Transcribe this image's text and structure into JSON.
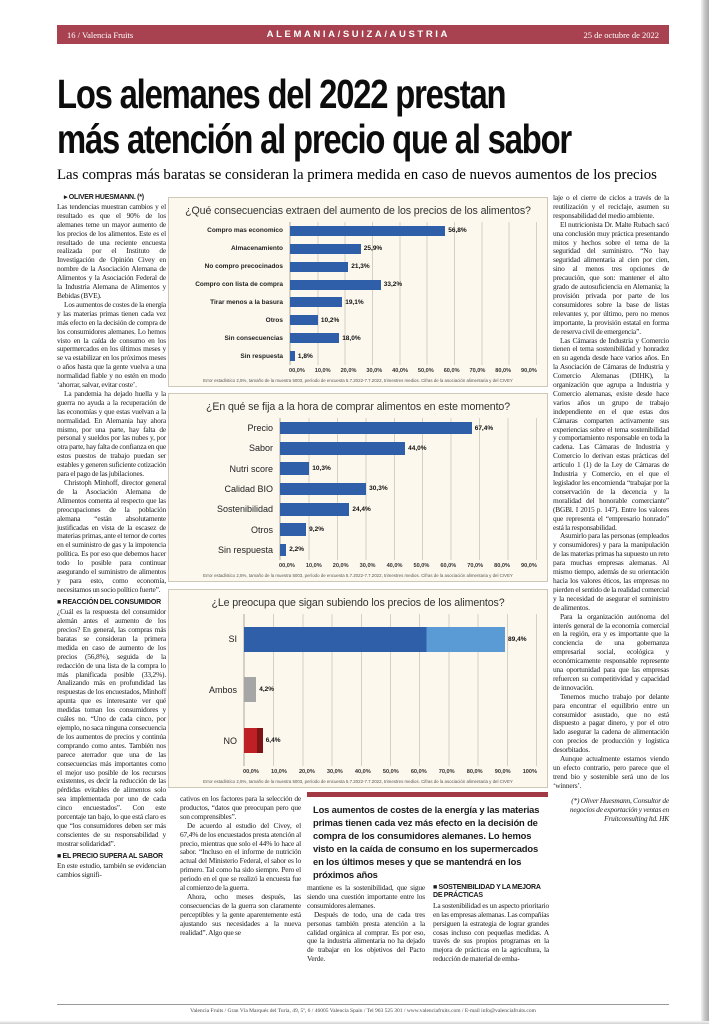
{
  "header": {
    "left": "16 / Valencia Fruits",
    "center": "ALEMANIA/SUIZA/AUSTRIA",
    "right": "25 de octubre de 2022",
    "bar_color": "#a84250"
  },
  "headline": {
    "line1": "Los alemanes del 2022 prestan",
    "line2": "más atención al precio que al sabor"
  },
  "deck": "Las compras más baratas se consideran la primera medida en caso de nuevos aumentos de los precios",
  "byline": "▸ OLIVER HUESMANN. (*)",
  "col1": {
    "p1": "Las tendencias muestran cambios y el resultado es que el 90% de los alemanes teme un mayor aumento de los precios de los alimentos. Este es el resultado de una reciente encuesta realizada por el Instituto de Investigación de Opinión Civey en nombre de la Asociación Alemana de Alimentos y la Asociación Federal de la Industria Alemana de Alimentos y Bebidas (BVE).",
    "p2": "Los aumentos de costes de la energía y las materias primas tienen cada vez más efecto en la decisión de compra de los consumidores alemanes. Lo hemos visto en la caída de consumo en los supermercados en los últimos meses y se va estabilizar en los próximos meses o años hasta que la gente vuelva a una normalidad fiable y no estén en modo ‘ahorrar, salvar, evitar coste’.",
    "p3": "La pandemia ha dejado huella y la guerra no ayuda a la recuperación de las economías y que estas vuelvan a la normalidad. En Alemania hay ahora mismo, por una parte, hay falta de personal y sueldos por las nubes y, por otra parte, hay falta de confianza en que estos puestos de trabajo puedan ser estables y generen suficiente cotización para el pago de las jubilaciones.",
    "p4": "Christoph Minhoff, director general de la Asociación Alemana de Alimentos comenta al respecto que las preocupaciones de la población alemana “están absolutamente justificadas en vista de la escasez de materias primas, ante el temor de cortes en el suministro de gas y la impotencia política. Es por eso que debemos hacer todo lo posible para continuar asegurando el suministro de alimentos y para esto, como economía, necesitamos un socio político fuerte”.",
    "h1": "■ REACCIÓN DEL CONSUMIDOR",
    "p5": "¿Cuál es la respuesta del consumidor alemán antes el aumento de los precios? En general, las compras más baratas se consideran la primera medida en caso de aumento de los precios (56,8%), seguida de la redacción de una lista de la compra lo más planificada posible (33,2%). Analizando más en profundidad las respuestas de los encuestados, Minhoff apunta que es interesante ver qué medidas toman los consumidores y cuáles no. “Uno de cada cinco, por ejemplo, no saca ninguna consecuencia de los aumentos de precios y continúa comprando como antes. También nos parece aterrador que una de las consecuencias más importantes como el mejor uso posible de los recursos existentes, es decir la reducción de las pérdidas evitables de alimentos solo sea implementada por uno de cada cinco encuestados”. Con este porcentaje tan bajo, lo que está claro es que “los consumidores deben ser más conscientes de su responsabilidad y mostrar solidaridad”.",
    "h2": "■ EL PRECIO SUPERA AL SABOR",
    "p6": "En este estudio, también se evidencian cambios signifi-"
  },
  "col2u": {
    "p1": "cativos en los factores para la selección de productos, “datos que preocupan pero que son comprensibles”.",
    "p2": "De acuerdo al estudio del Civey, el 67,4% de los encuestados presta atención al precio, mientras que solo el 44% lo hace al sabor. “Incluso en el informe de nutrición actual del Ministerio Federal, el sabor es lo primero. Tal como ha sido siempre. Pero el periodo en el que se realizó la encuesta fue al comienzo de la guerra.",
    "p3": "Ahora, ocho meses después, las consecuencias de la guerra son claramente perceptibles y la gente aparentemente está ajustando sus necesidades a la nueva realidad”. Algo que se"
  },
  "pull_quote": "Los aumentos de costes de la energía y las materias primas tienen cada vez más efecto en la decisión de compra de los consumidores alemanes. Lo hemos visto en la caída de consumo en los supermercados en los últimos meses y que se mantendrá en los próximos años",
  "col3u": {
    "p1": "mantiene es la sostenibilidad, que sigue siendo una cuestión importante entre los consumidores alemanes.",
    "p2": "Después de todo, una de cada tres personas también presta atención a la calidad orgánica al comprar. Es por eso, que la industria alimentaria no ha dejado de trabajar en los objetivos del Pacto Verde."
  },
  "col4u": {
    "h": "■ SOSTENIBILIDAD Y LA MEJORA DE PRÁCTICAS",
    "p1": "La sostenibilidad es un aspecto prioritario en las empresas alemanas. Las compañías persiguen la estrategia de lograr grandes cosas incluso con pequeñas medidas. A través de sus propios programas en la mejora de prácticas en la agricultura, la reducción de material de emba-"
  },
  "col5": {
    "p1": "laje o el cierre de ciclos a través de la reutilización y el reciclaje, asumen su responsabilidad del medio ambiente.",
    "p2": "El nutricionista Dr. Malte Rubach sacó una conclusión muy práctica presentando mitos y hechos sobre el tema de la seguridad del suministro. “No hay seguridad alimentaria al cien por cien, sino al menos tres opciones de precaución, que son: mantener el alto grado de autosuficiencia en Alemania; la provisión privada por parte de los consumidores sobre la base de listas relevantes y, por último, pero no menos importante, la provisión estatal en forma de reserva civil de emergencia”.",
    "p3": "Las Cámaras de Industria y Comercio tienen el tema sostenibilidad y honradez en su agenda desde hace varios años. En la Asociación de Cámaras de Industria y Comercio Alemanas (DIHK), la organización que agrupa a Industria y Comercio alemanas, existe desde hace varios años un grupo de trabajo independiente en el que estas dos Cámaras comparten activamente sus experiencias sobre el tema sostenibilidad y comportamiento responsable en toda la cadena. Las Cámaras de Industria y Comercio lo derivan estas prácticas del artículo 1 (1) de la Ley de Cámaras de Industria y Comercio, en el que el legislador les encomienda “trabajar por la conservación de la decencia y la moralidad del honorable comerciante” (BGBl. I 2015 p. 147). Entre los valores que representa el “empresario honrado” está la responsabilidad.",
    "p4": "Asumirlo para las personas (empleados y consumidores) y para la manipulación de las materias primas ha supuesto un reto para muchas empresas alemanas. Al mismo tiempo, además de su orientación hacia los valores éticos, las empresas no pierden el sentido de la realidad comercial y la necesidad de asegurar el suministro de alimentos.",
    "p5": "Para la organización autónoma del interés general de la economía comercial en la región, era y es importante que la conciencia de una gobernanza empresarial social, ecológica y económicamente responsable represente una oportunidad para que las empresas refuercen su competitividad y capacidad de innovación.",
    "p6": "Tenemos mucho trabajo por delante para encontrar el equilibrio entre un consumidor asustado, que no está dispuesto a pagar dinero, y por el otro lado asegurar la cadena de alimentación con precios de producción y logística desorbitados.",
    "p7": "Aunque actualmente estamos viendo un efecto contrario, pero parece que el trend bio y sostenible será uno de los ‘winners’.",
    "signature": "(*) Oliver Huesmann, Consultor de negocios de exportación y ventas en Fruitconsulting ltd. HK"
  },
  "chart_data": [
    {
      "type": "bar",
      "title": "¿Qué consecuencias extraen del aumento de los precios de los alimentos?",
      "categories": [
        "Compro mas economico",
        "Almacenamiento",
        "No compro precocinados",
        "Compro con lista de compra",
        "Tirar menos a la basura",
        "Otros",
        "Sin consecuencias",
        "Sin respuesta"
      ],
      "values": [
        56.8,
        25.9,
        21.3,
        33.2,
        19.1,
        10.2,
        18.0,
        1.8
      ],
      "value_labels": [
        "56,8%",
        "25,9%",
        "21,3%",
        "33,2%",
        "19,1%",
        "10,2%",
        "18,0%",
        "1,8%"
      ],
      "xlim": [
        0,
        90
      ],
      "x_ticks": [
        "00,0%",
        "10,0%",
        "20,0%",
        "30,0%",
        "40,0%",
        "50,0%",
        "60,0%",
        "70,0%",
        "80,0%",
        "90,0%"
      ],
      "bar_color": "#2f5fa8",
      "grid": true,
      "legend": "none",
      "footnote": "Error estadístico 2,5%, tamaño de la muestra 5003, período de encuesta 5.7.2022-7.7.2022, trimestres medios.  Cifras de la asociación alimentaria y del CIVEY"
    },
    {
      "type": "bar",
      "title": "¿En qué se fija a la hora de comprar alimentos en este momento?",
      "categories": [
        "Precio",
        "Sabor",
        "Nutri score",
        "Calidad BIO",
        "Sostenibilidad",
        "Otros",
        "Sin respuesta"
      ],
      "values": [
        67.4,
        44.0,
        10.3,
        30.3,
        24.4,
        9.2,
        2.2
      ],
      "value_labels": [
        "67,4%",
        "44,0%",
        "10,3%",
        "30,3%",
        "24,4%",
        "9,2%",
        "2,2%"
      ],
      "xlim": [
        0,
        90
      ],
      "x_ticks": [
        "00,0%",
        "10,0%",
        "20,0%",
        "30,0%",
        "40,0%",
        "50,0%",
        "60,0%",
        "70,0%",
        "80,0%",
        "90,0%"
      ],
      "bar_color": "#2f5fa8",
      "grid": true,
      "legend": "none",
      "footnote": "Error estadístico 2,5%, tamaño de la muestra 5003, período de encuesta 5.7.2022-7.7.2022, trimestres medios.  Cifras de la asociación alimentaria y del CIVEY"
    },
    {
      "type": "bar",
      "title": "¿Le preocupa que sigan subiendo los precios de los alimentos?",
      "categories": [
        "SI",
        "Ambos",
        "NO"
      ],
      "values": [
        89.4,
        4.2,
        6.4
      ],
      "value_labels": [
        "89,4%",
        "4,2%",
        "6,4%"
      ],
      "xlim": [
        0,
        100
      ],
      "x_ticks": [
        "00,0%",
        "10,0%",
        "20,0%",
        "30,0%",
        "40,0%",
        "50,0%",
        "60,0%",
        "70,0%",
        "80,0%",
        "90,0%",
        "100%"
      ],
      "bars": [
        {
          "color": "#2f5fa8",
          "color2": "#5b9bd5",
          "split": 70
        },
        {
          "color": "#a6a6a6"
        },
        {
          "color": "#bf2026",
          "color2": "#7c1416",
          "split": 68
        }
      ],
      "grid": true,
      "legend": "none",
      "footnote": "Error estadístico 2,5%, tamaño de la muestra 5003, período de encuesta 5.7.2022-7.7.2022, trimestres medios.  Cifras de la asociación alimentaria y del CIVEY"
    }
  ],
  "footer": "Valencia Fruits / Gran Vía Marqués del Turia, 49, 5º, 6 / 46005 Valencia Spain / Tel 963 525 301 / www.valenciafruits.com / E-mail info@valenciafruits.com"
}
